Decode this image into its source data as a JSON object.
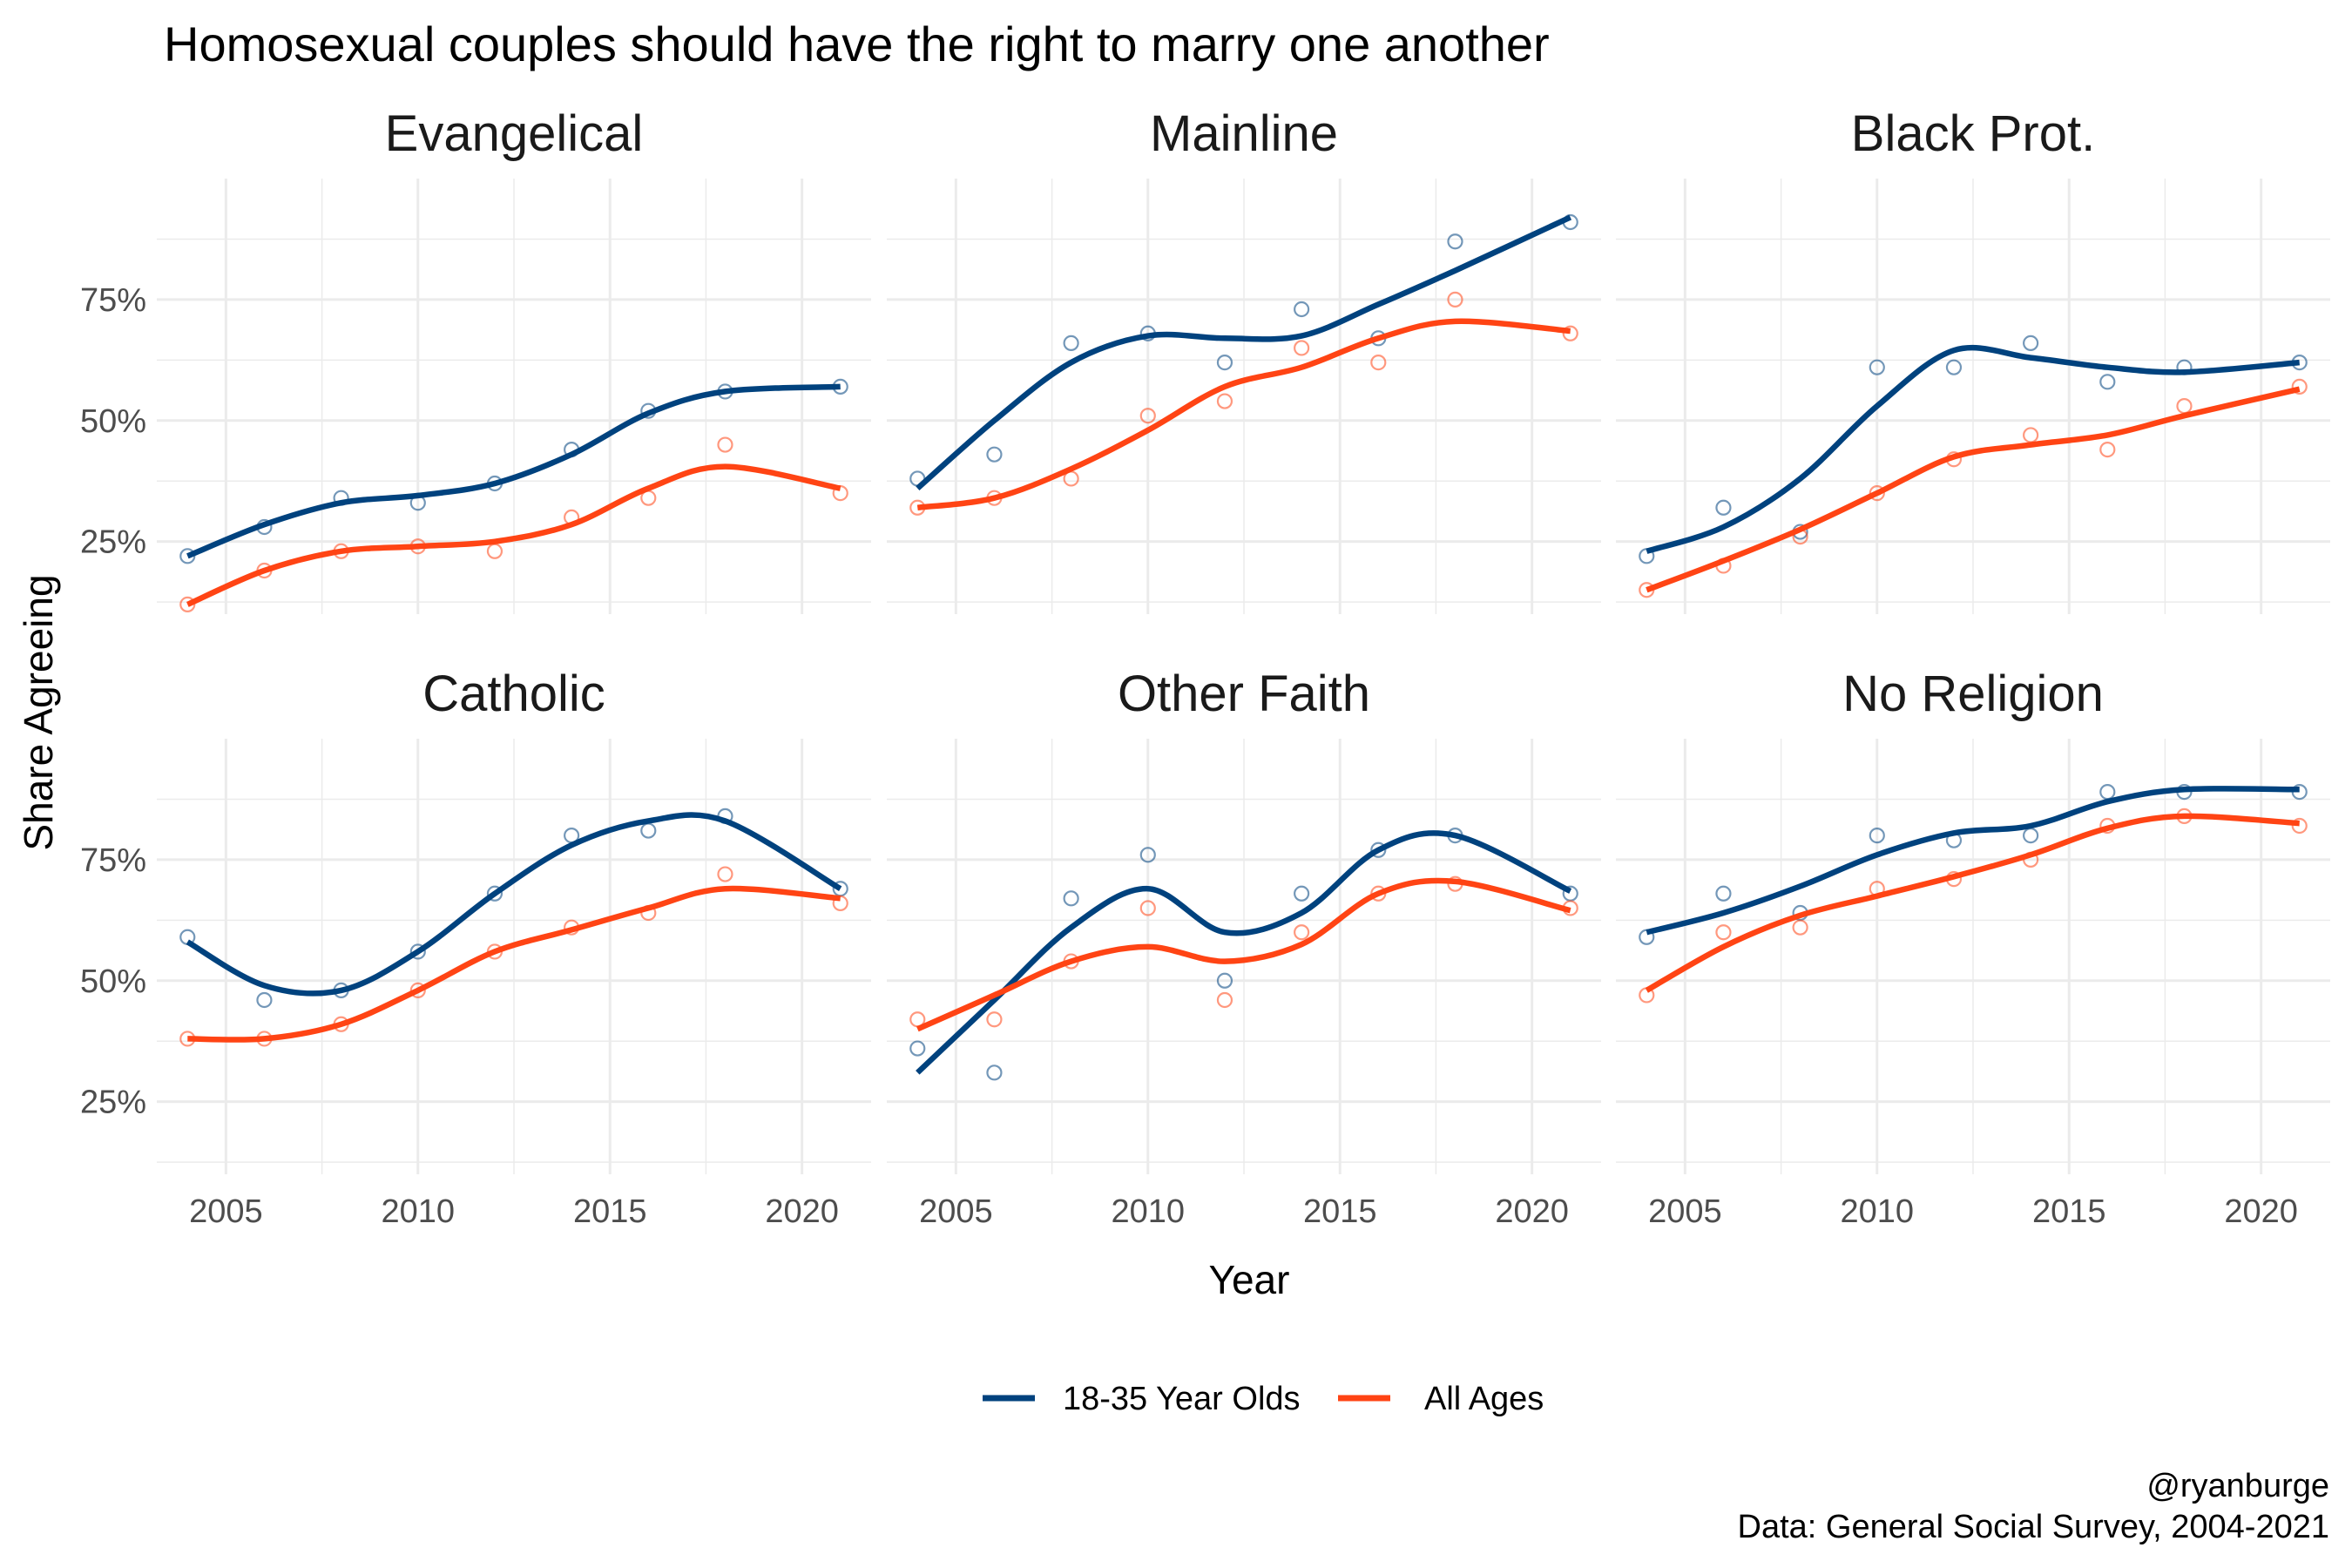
{
  "chart_data": {
    "type": "scatter",
    "title": "Homosexual couples should have the right to marry one another",
    "xlabel": "Year",
    "ylabel": "Share Agreeing",
    "xlim": [
      2003.2,
      2021.8
    ],
    "ylim": [
      0.1,
      1.0
    ],
    "x_ticks": [
      2005,
      2010,
      2015,
      2020
    ],
    "x_tick_labels": [
      "2005",
      "2010",
      "2015",
      "2020"
    ],
    "y_ticks": [
      0.25,
      0.5,
      0.75
    ],
    "y_tick_labels": [
      "25%",
      "50%",
      "75%"
    ],
    "x": [
      2004,
      2006,
      2008,
      2010,
      2012,
      2014,
      2016,
      2018,
      2021
    ],
    "legend": {
      "position": "bottom",
      "entries": [
        "18-35 Year Olds",
        "All Ages"
      ]
    },
    "colors": {
      "young": "#00427e",
      "all": "#ff4414",
      "grid": "#ebebeb"
    },
    "caption": [
      "@ryanburge",
      "Data: General Social Survey, 2004-2021"
    ],
    "panels": [
      {
        "name": "Evangelical",
        "series": [
          {
            "name": "18-35 Year Olds",
            "values": [
              0.22,
              0.28,
              0.34,
              0.33,
              0.37,
              0.44,
              0.52,
              0.56,
              0.57
            ],
            "smooth": [
              0.22,
              0.285,
              0.33,
              0.345,
              0.37,
              0.43,
              0.515,
              0.56,
              0.57
            ]
          },
          {
            "name": "All Ages",
            "values": [
              0.12,
              0.19,
              0.23,
              0.24,
              0.23,
              0.3,
              0.34,
              0.45,
              0.35
            ],
            "smooth": [
              0.12,
              0.19,
              0.23,
              0.24,
              0.25,
              0.285,
              0.36,
              0.405,
              0.36
            ]
          }
        ]
      },
      {
        "name": "Mainline",
        "series": [
          {
            "name": "18-35 Year Olds",
            "values": [
              0.38,
              0.43,
              0.66,
              0.68,
              0.62,
              0.73,
              0.67,
              0.87,
              0.91
            ],
            "smooth": [
              0.36,
              0.5,
              0.62,
              0.675,
              0.67,
              0.675,
              0.74,
              0.81,
              0.92
            ]
          },
          {
            "name": "All Ages",
            "values": [
              0.32,
              0.34,
              0.38,
              0.51,
              0.54,
              0.65,
              0.62,
              0.75,
              0.68
            ],
            "smooth": [
              0.32,
              0.34,
              0.4,
              0.48,
              0.57,
              0.61,
              0.67,
              0.705,
              0.685
            ]
          }
        ]
      },
      {
        "name": "Black Prot.",
        "series": [
          {
            "name": "18-35 Year Olds",
            "values": [
              0.22,
              0.32,
              0.27,
              0.61,
              0.61,
              0.66,
              0.58,
              0.61,
              0.62
            ],
            "smooth": [
              0.23,
              0.28,
              0.38,
              0.53,
              0.645,
              0.63,
              0.61,
              0.6,
              0.62
            ]
          },
          {
            "name": "All Ages",
            "values": [
              0.15,
              0.2,
              0.26,
              0.35,
              0.42,
              0.47,
              0.44,
              0.53,
              0.57
            ],
            "smooth": [
              0.15,
              0.21,
              0.275,
              0.35,
              0.425,
              0.45,
              0.47,
              0.51,
              0.565
            ]
          }
        ]
      },
      {
        "name": "Catholic",
        "series": [
          {
            "name": "18-35 Year Olds",
            "values": [
              0.59,
              0.46,
              0.48,
              0.56,
              0.68,
              0.8,
              0.81,
              0.84,
              0.69
            ],
            "smooth": [
              0.58,
              0.49,
              0.48,
              0.56,
              0.68,
              0.78,
              0.83,
              0.83,
              0.69
            ]
          },
          {
            "name": "All Ages",
            "values": [
              0.38,
              0.38,
              0.41,
              0.48,
              0.56,
              0.61,
              0.64,
              0.72,
              0.66
            ],
            "smooth": [
              0.38,
              0.38,
              0.41,
              0.48,
              0.56,
              0.605,
              0.65,
              0.69,
              0.67
            ]
          }
        ]
      },
      {
        "name": "Other Faith",
        "series": [
          {
            "name": "18-35 Year Olds",
            "values": [
              0.36,
              0.31,
              0.67,
              0.76,
              0.5,
              0.68,
              0.77,
              0.8,
              0.68
            ],
            "smooth": [
              0.31,
              0.46,
              0.61,
              0.69,
              0.6,
              0.64,
              0.77,
              0.8,
              0.685
            ]
          },
          {
            "name": "All Ages",
            "values": [
              0.42,
              0.42,
              0.54,
              0.65,
              0.46,
              0.6,
              0.68,
              0.7,
              0.65
            ],
            "smooth": [
              0.4,
              0.47,
              0.54,
              0.57,
              0.54,
              0.575,
              0.68,
              0.705,
              0.645
            ]
          }
        ]
      },
      {
        "name": "No Religion",
        "series": [
          {
            "name": "18-35 Year Olds",
            "values": [
              0.59,
              0.68,
              0.64,
              0.8,
              0.79,
              0.8,
              0.89,
              0.89,
              0.89
            ],
            "smooth": [
              0.6,
              0.64,
              0.695,
              0.76,
              0.805,
              0.82,
              0.87,
              0.895,
              0.895
            ]
          },
          {
            "name": "All Ages",
            "values": [
              0.47,
              0.6,
              0.61,
              0.69,
              0.71,
              0.75,
              0.82,
              0.84,
              0.82
            ],
            "smooth": [
              0.48,
              0.57,
              0.635,
              0.675,
              0.715,
              0.76,
              0.815,
              0.84,
              0.825
            ]
          }
        ]
      }
    ]
  }
}
